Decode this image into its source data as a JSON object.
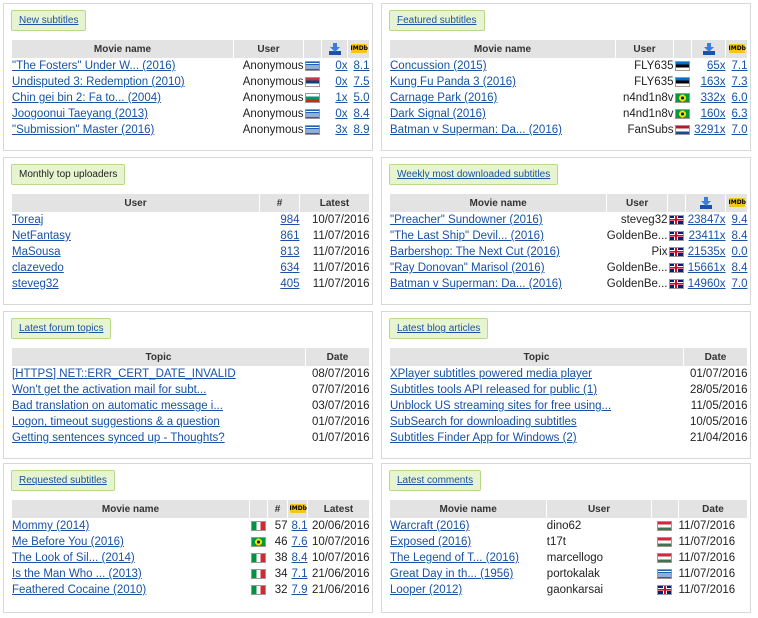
{
  "colors": {
    "link": "#1a52a6",
    "title_bg": "#e6f5cf",
    "row_alt": "#eef7e0",
    "header_bg": "#e3e3e3"
  },
  "new_subtitles": {
    "title": "New subtitles",
    "headers": {
      "movie": "Movie name",
      "user": "User"
    },
    "rows": [
      {
        "movie": "\"The Fosters\" Under W... (2016)",
        "user": "Anonymous",
        "flag": "gr",
        "dl": "0x",
        "rating": "8.1"
      },
      {
        "movie": "Undisputed 3: Redemption (2010)",
        "user": "Anonymous",
        "flag": "rs",
        "dl": "0x",
        "rating": "7.5"
      },
      {
        "movie": "Chin gei bin 2: Fa to... (2004)",
        "user": "Anonymous",
        "flag": "bg",
        "dl": "1x",
        "rating": "5.0"
      },
      {
        "movie": "Joogoonui Taeyang (2013)",
        "user": "Anonymous",
        "flag": "gr",
        "dl": "0x",
        "rating": "8.4"
      },
      {
        "movie": "\"Submission\" Master (2016)",
        "user": "Anonymous",
        "flag": "gr",
        "dl": "3x",
        "rating": "8.9"
      }
    ]
  },
  "featured_subtitles": {
    "title": "Featured subtitles",
    "headers": {
      "movie": "Movie name",
      "user": "User"
    },
    "rows": [
      {
        "movie": "Concussion (2015)",
        "user": "FLY635",
        "flag": "ee",
        "dl": "65x",
        "rating": "7.1"
      },
      {
        "movie": "Kung Fu Panda 3 (2016)",
        "user": "FLY635",
        "flag": "ee",
        "dl": "163x",
        "rating": "7.3"
      },
      {
        "movie": "Carnage Park (2016)",
        "user": "n4nd1n8v",
        "flag": "br",
        "dl": "332x",
        "rating": "6.0"
      },
      {
        "movie": "Dark Signal (2016)",
        "user": "n4nd1n8v",
        "flag": "br",
        "dl": "160x",
        "rating": "6.3"
      },
      {
        "movie": "Batman v Superman: Da... (2016)",
        "user": "FanSubs",
        "flag": "nl",
        "dl": "3291x",
        "rating": "7.0"
      }
    ]
  },
  "monthly_uploaders": {
    "title": "Monthly top uploaders",
    "headers": {
      "user": "User",
      "count": "#",
      "latest": "Latest"
    },
    "rows": [
      {
        "user": "Toreaj",
        "count": "984",
        "latest": "10/07/2016"
      },
      {
        "user": "NetFantasy",
        "count": "861",
        "latest": "11/07/2016"
      },
      {
        "user": "MaSousa",
        "count": "813",
        "latest": "11/07/2016"
      },
      {
        "user": "clazevedo",
        "count": "634",
        "latest": "11/07/2016"
      },
      {
        "user": "steveg32",
        "count": "405",
        "latest": "11/07/2016"
      }
    ]
  },
  "weekly_downloaded": {
    "title": "Weekly most downloaded subtitles",
    "headers": {
      "movie": "Movie name",
      "user": "User"
    },
    "rows": [
      {
        "movie": "\"Preacher\" Sundowner (2016)",
        "user": "steveg32",
        "flag": "gb",
        "dl": "23847x",
        "rating": "9.4"
      },
      {
        "movie": "\"The Last Ship\" Devil... (2016)",
        "user": "GoldenBe...",
        "flag": "gb",
        "dl": "23411x",
        "rating": "8.4"
      },
      {
        "movie": "Barbershop: The Next Cut (2016)",
        "user": "Pix",
        "flag": "gb",
        "dl": "21535x",
        "rating": "0.0"
      },
      {
        "movie": "\"Ray Donovan\" Marisol (2016)",
        "user": "GoldenBe...",
        "flag": "gb",
        "dl": "15661x",
        "rating": "8.4"
      },
      {
        "movie": "Batman v Superman: Da... (2016)",
        "user": "GoldenBe...",
        "flag": "gb",
        "dl": "14960x",
        "rating": "7.0"
      }
    ]
  },
  "forum_topics": {
    "title": "Latest forum topics",
    "headers": {
      "topic": "Topic",
      "date": "Date"
    },
    "rows": [
      {
        "topic": "[HTTPS] NET::ERR_CERT_DATE_INVALID",
        "date": "08/07/2016"
      },
      {
        "topic": "Won't get the activation mail for subt...",
        "date": "07/07/2016"
      },
      {
        "topic": "Bad translation on automatic message i...",
        "date": "03/07/2016"
      },
      {
        "topic": "Logon, timeout suggestions & a question",
        "date": "01/07/2016"
      },
      {
        "topic": "Getting sentences synced up - Thoughts?",
        "date": "01/07/2016"
      }
    ]
  },
  "blog_articles": {
    "title": "Latest blog articles",
    "headers": {
      "topic": "Topic",
      "date": "Date"
    },
    "rows": [
      {
        "topic": "XPlayer subtitles powered media player",
        "date": "01/07/2016"
      },
      {
        "topic": "Subtitles tools API released for public (1)",
        "date": "28/05/2016"
      },
      {
        "topic": "Unblock US streaming sites for free using...",
        "date": "11/05/2016"
      },
      {
        "topic": "SubSearch for downloading subtitles",
        "date": "10/05/2016"
      },
      {
        "topic": "Subtitles Finder App for Windows (2)",
        "date": "21/04/2016"
      }
    ]
  },
  "requested_subtitles": {
    "title": "Requested subtitles",
    "headers": {
      "movie": "Movie name",
      "count": "#",
      "latest": "Latest"
    },
    "rows": [
      {
        "movie": "Mommy (2014)",
        "flag": "it",
        "count": "57",
        "rating": "8.1",
        "latest": "20/06/2016"
      },
      {
        "movie": "Me Before You (2016)",
        "flag": "br",
        "count": "46",
        "rating": "7.6",
        "latest": "10/07/2016"
      },
      {
        "movie": "The Look of Sil... (2014)",
        "flag": "it",
        "count": "38",
        "rating": "8.4",
        "latest": "10/07/2016"
      },
      {
        "movie": "Is the Man Who ... (2013)",
        "flag": "it",
        "count": "34",
        "rating": "7.1",
        "latest": "21/06/2016"
      },
      {
        "movie": "Feathered Cocaine (2010)",
        "flag": "it",
        "count": "32",
        "rating": "7.9",
        "latest": "21/06/2016"
      }
    ]
  },
  "latest_comments": {
    "title": "Latest comments",
    "headers": {
      "movie": "Movie name",
      "user": "User",
      "date": "Date"
    },
    "rows": [
      {
        "movie": "Warcraft (2016)",
        "user": "dino62",
        "flag": "hu",
        "date": "11/07/2016"
      },
      {
        "movie": "Exposed (2016)",
        "user": "t17t",
        "flag": "hu",
        "date": "11/07/2016"
      },
      {
        "movie": "The Legend of T... (2016)",
        "user": "marcellogo",
        "flag": "hu",
        "date": "11/07/2016"
      },
      {
        "movie": "Great Day in th... (1956)",
        "user": "portokalak",
        "flag": "gr",
        "date": "11/07/2016"
      },
      {
        "movie": "Looper (2012)",
        "user": "gaonkarsai",
        "flag": "gb",
        "date": "11/07/2016"
      }
    ]
  }
}
